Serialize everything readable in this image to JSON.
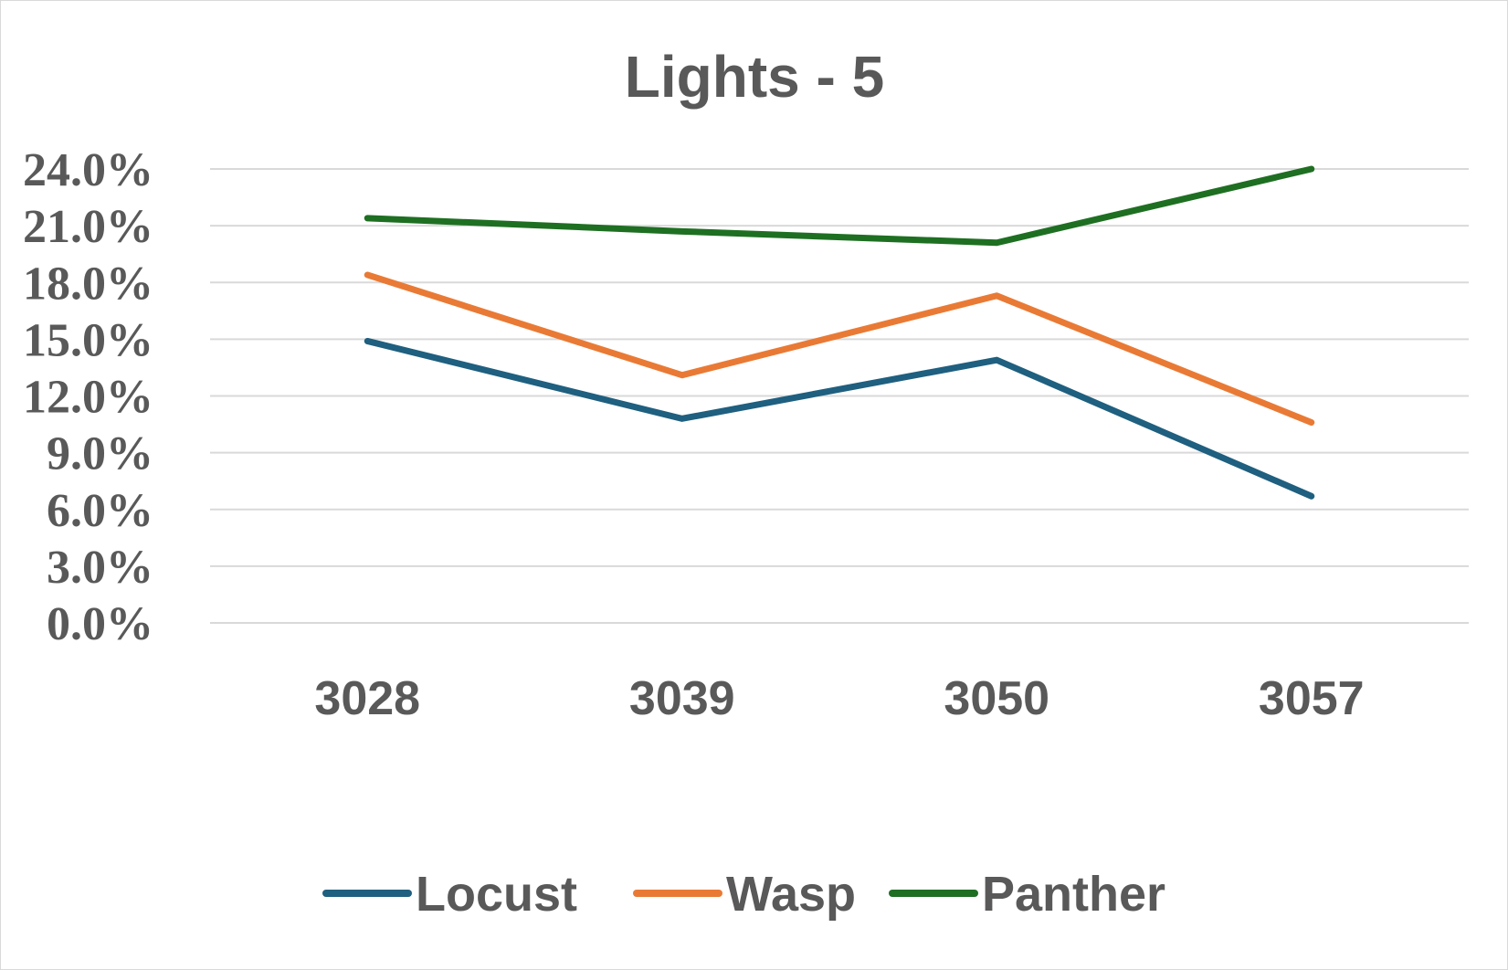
{
  "chart_data": {
    "type": "line",
    "title": "Lights - 5",
    "xlabel": "",
    "ylabel": "",
    "categories": [
      "3028",
      "3039",
      "3050",
      "3057"
    ],
    "ylim": [
      0,
      0.24
    ],
    "yticks": [
      "0.0%",
      "3.0%",
      "6.0%",
      "9.0%",
      "12.0%",
      "15.0%",
      "18.0%",
      "21.0%",
      "24.0%"
    ],
    "grid": true,
    "legend_position": "bottom",
    "series": [
      {
        "name": "Locust",
        "color": "#1f5f7f",
        "values": [
          0.149,
          0.108,
          0.139,
          0.067
        ]
      },
      {
        "name": "Wasp",
        "color": "#e97a35",
        "values": [
          0.184,
          0.131,
          0.173,
          0.106
        ]
      },
      {
        "name": "Panther",
        "color": "#1e6f22",
        "values": [
          0.214,
          0.207,
          0.201,
          0.24
        ]
      }
    ]
  }
}
